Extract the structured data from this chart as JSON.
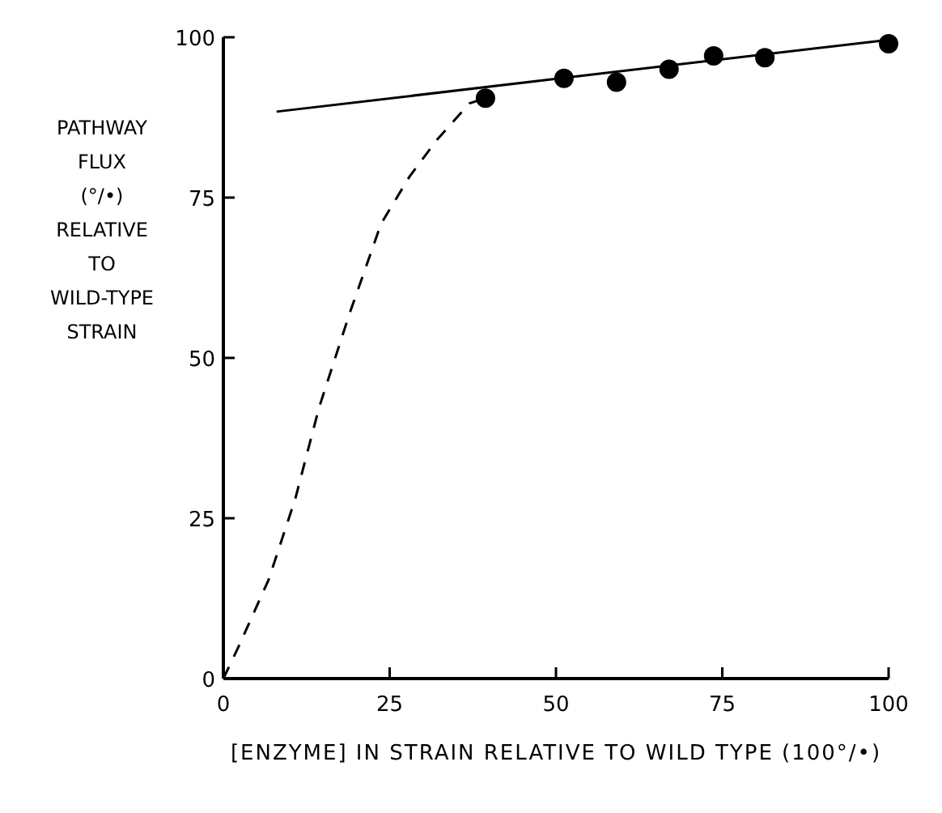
{
  "chart_data": {
    "type": "scatter",
    "xlabel": "[ENZYME] IN STRAIN RELATIVE TO WILD TYPE (100°/•)",
    "ylabel": "PATHWAY\nFLUX\n(°/•)\nRELATIVE\nTO\nWILD-TYPE\nSTRAIN",
    "xlim": [
      0,
      100
    ],
    "ylim": [
      0,
      100
    ],
    "xticks": [
      0,
      25,
      50,
      75,
      100
    ],
    "yticks": [
      0,
      25,
      50,
      75,
      100
    ],
    "grid": false,
    "series": [
      {
        "color": "#000000",
        "marker": "circle",
        "x": [
          39.4,
          51.2,
          59.1,
          67,
          73.7,
          81.4,
          100
        ],
        "values": [
          90.5,
          93.6,
          93,
          95,
          97.1,
          96.8,
          99
        ]
      },
      {
        "type": "line",
        "color": "#000000",
        "marker": "none",
        "line_style": "solid",
        "x": [
          8,
          100
        ],
        "values": [
          88.4,
          99.6
        ]
      },
      {
        "type": "line",
        "color": "#000000",
        "marker": "none",
        "line_style": "dashed",
        "x": [
          0,
          2.3,
          6.8,
          10.8,
          14.4,
          19,
          23.7,
          28,
          32.1,
          37,
          39.4
        ],
        "values": [
          0,
          5,
          15.4,
          28,
          42.3,
          57,
          70.9,
          78.3,
          84,
          89.7,
          90.5
        ]
      }
    ]
  }
}
